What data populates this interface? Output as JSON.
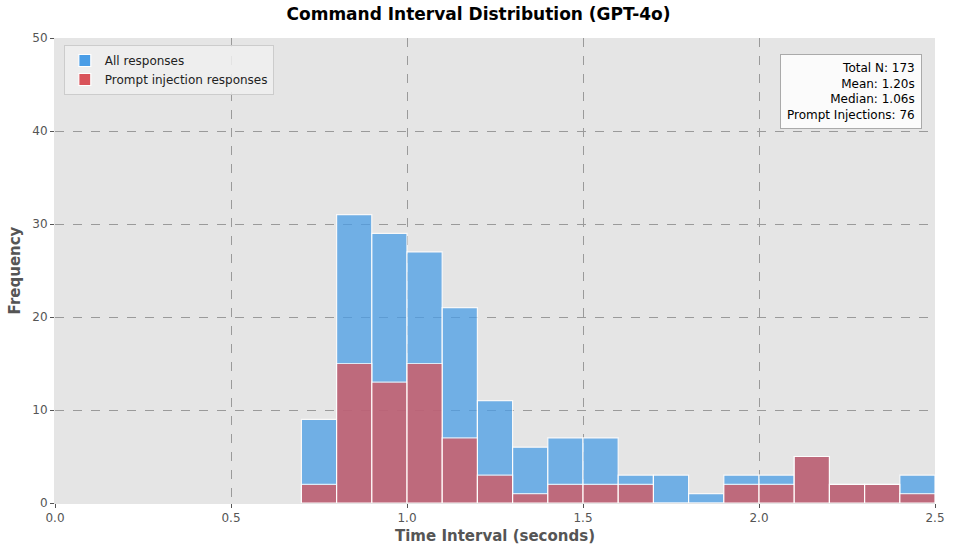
{
  "chart_data": {
    "type": "histogram",
    "title": "Command Interval Distribution (GPT-4o)",
    "x_label": "Time Interval (seconds)",
    "y_label": "Frequency",
    "bins": [
      0.7,
      0.8,
      0.9,
      1.0,
      1.1,
      1.2,
      1.3,
      1.4,
      1.5,
      1.6,
      1.7,
      1.8,
      1.9,
      2.0,
      2.1,
      2.2,
      2.3,
      2.4,
      2.5
    ],
    "series": [
      {
        "name": "All responses",
        "color": "#4a9de6",
        "values": [
          9,
          31,
          29,
          27,
          21,
          11,
          6,
          7,
          7,
          3,
          3,
          1,
          3,
          3,
          5,
          2,
          2,
          3
        ]
      },
      {
        "name": "Prompt injection responses",
        "color": "#d9535a",
        "values": [
          2,
          15,
          13,
          15,
          7,
          3,
          1,
          2,
          2,
          2,
          0,
          0,
          2,
          2,
          5,
          2,
          2,
          1
        ]
      }
    ],
    "annotations": [
      "Total N: 173",
      "Mean: 1.20s",
      "Median: 1.06s",
      "Prompt Injections: 76"
    ],
    "xlim": [
      0,
      2.5
    ],
    "xticks": [
      {
        "value": 0,
        "label": "0.0"
      },
      0.5,
      {
        "value": 1,
        "label": "1.0"
      },
      1.5,
      {
        "value": 2,
        "label": "2.0"
      },
      2.5
    ],
    "ylim": [
      0,
      50
    ],
    "yticks": [
      0,
      10,
      20,
      30,
      40,
      50
    ],
    "grid": true,
    "legend": "upper left"
  }
}
